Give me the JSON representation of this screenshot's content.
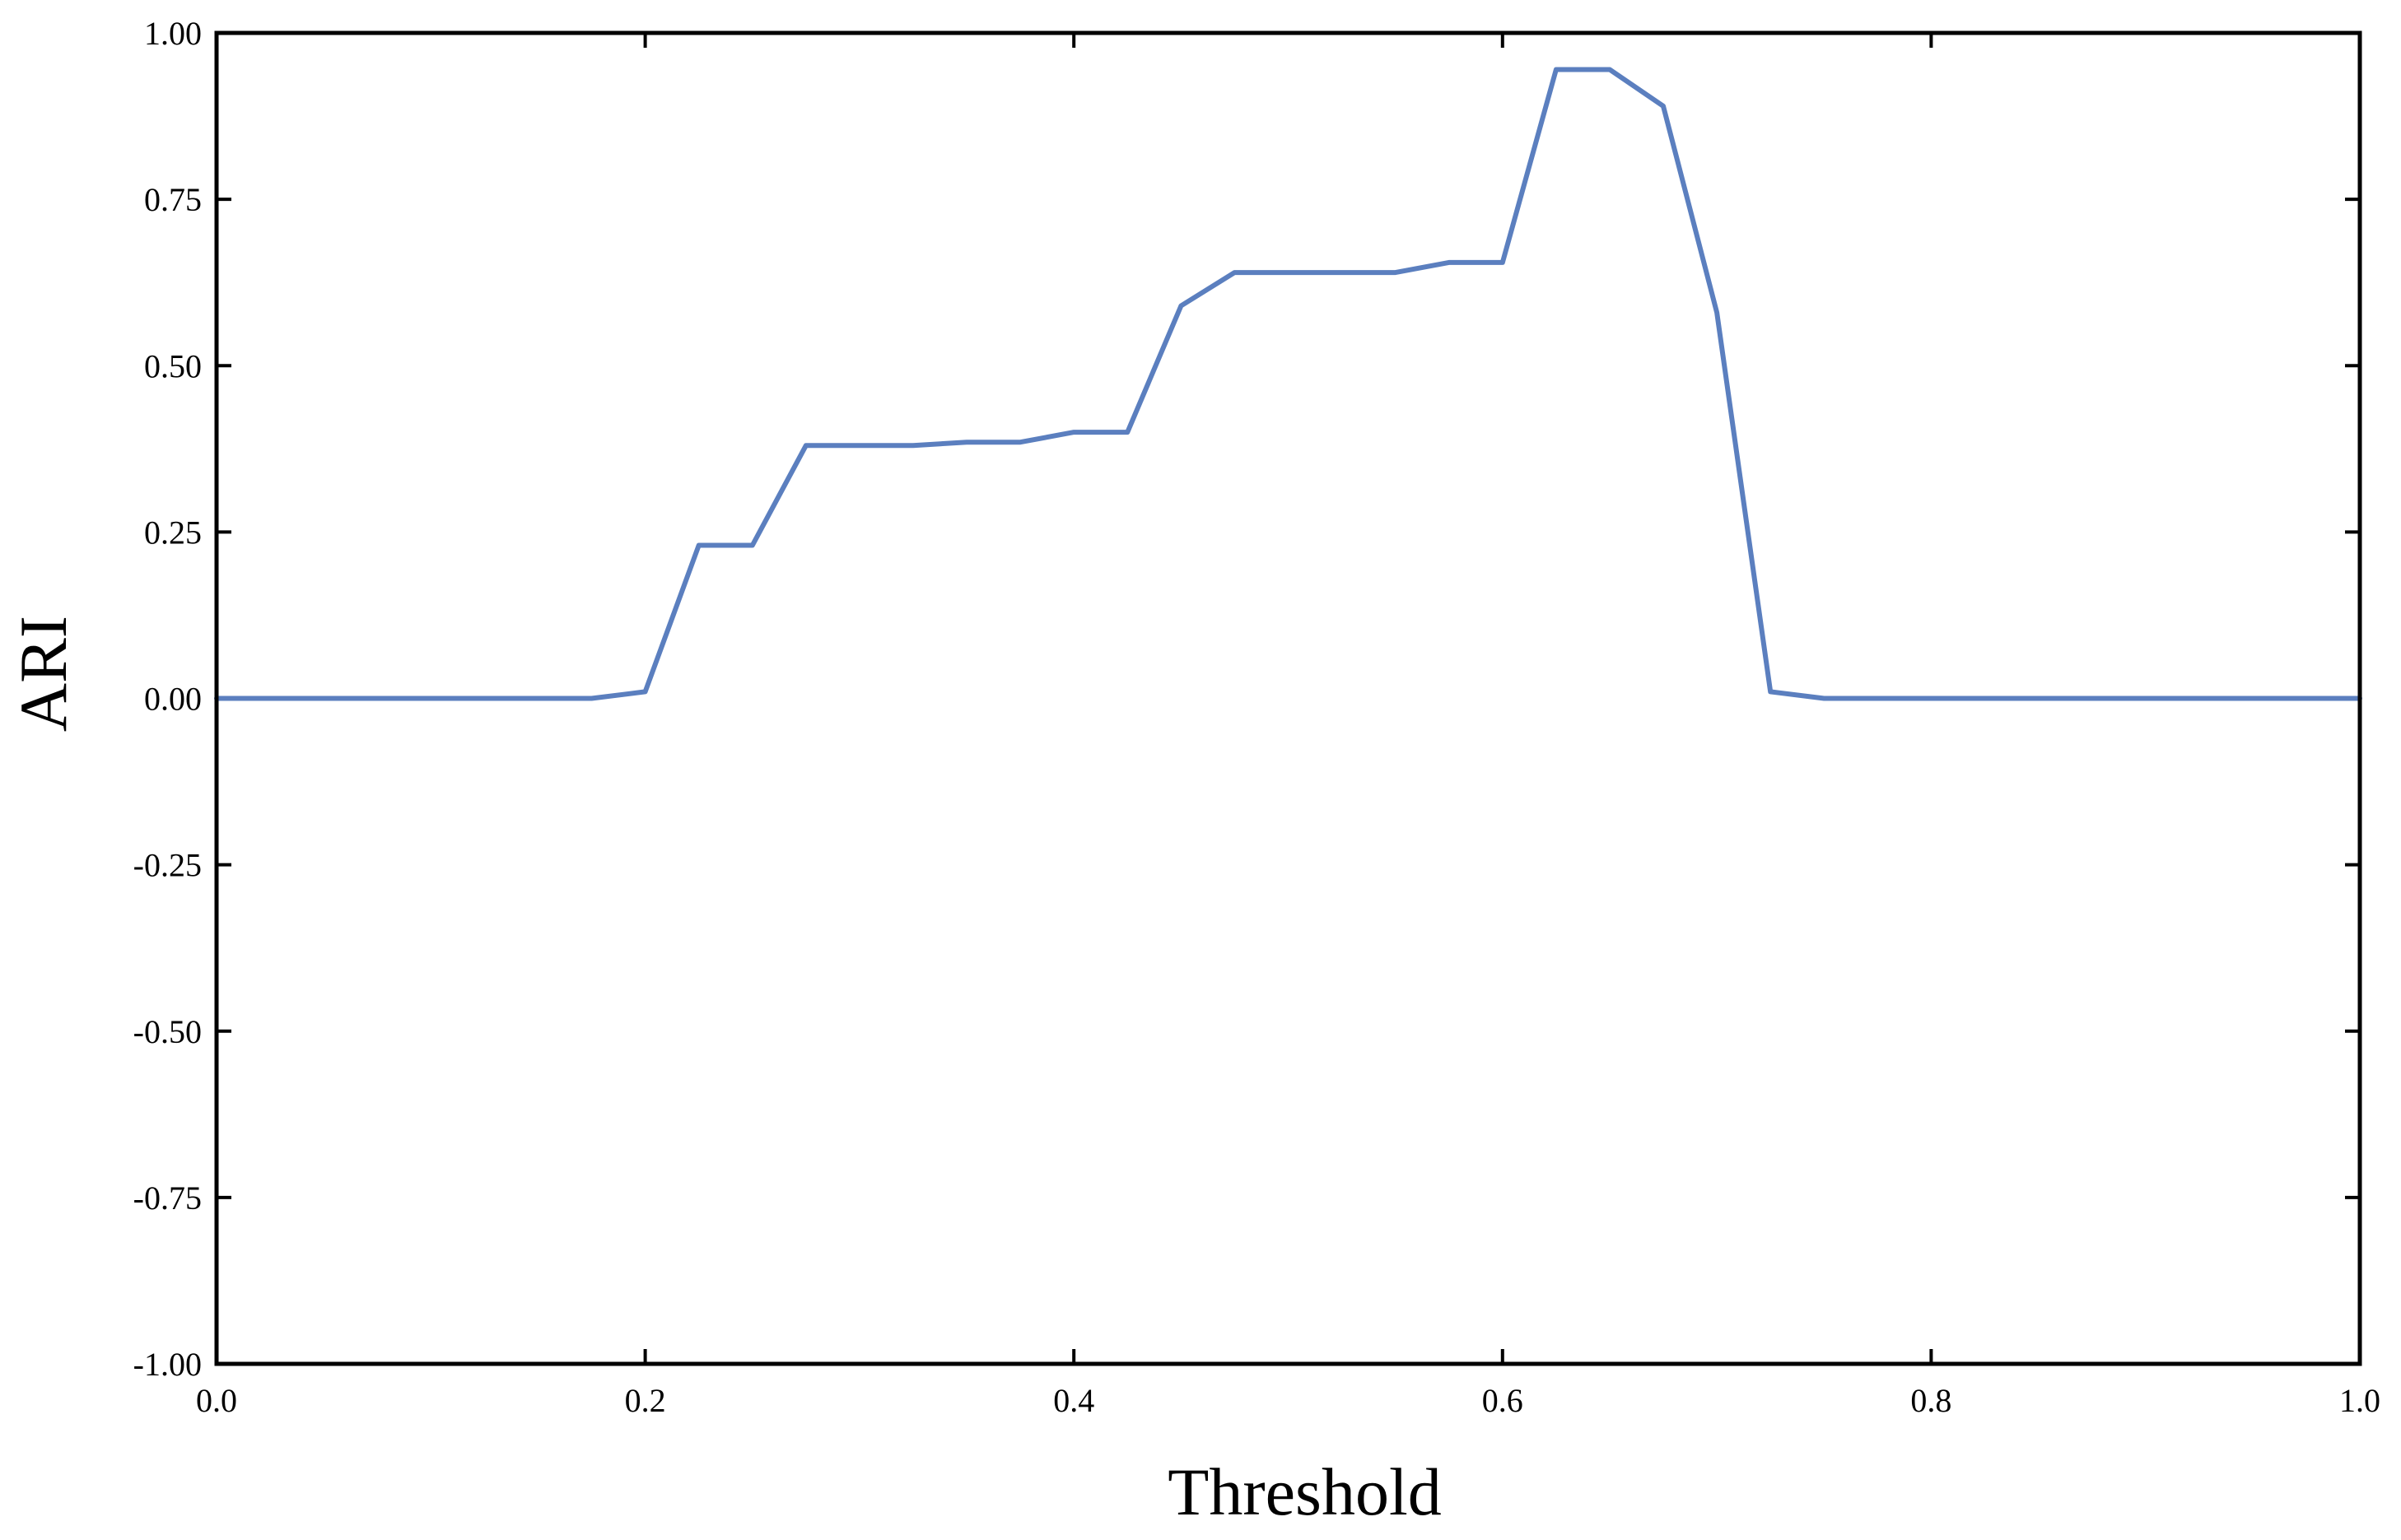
{
  "chart_data": {
    "type": "line",
    "xlabel": "Threshold",
    "ylabel": "ARI",
    "xlim": [
      0.0,
      1.0
    ],
    "ylim": [
      -1.0,
      1.0
    ],
    "x_ticks": [
      "0.0",
      "0.2",
      "0.4",
      "0.6",
      "0.8",
      "1.0"
    ],
    "y_ticks": [
      "1.00",
      "0.75",
      "0.50",
      "0.25",
      "0.00",
      "-0.25",
      "-0.50",
      "-0.75",
      "-1.00"
    ],
    "grid": false,
    "legend": "none",
    "line_color": "#5b7fbf",
    "series": [
      {
        "x": [
          0.0,
          0.025,
          0.05,
          0.075,
          0.1,
          0.125,
          0.15,
          0.175,
          0.2,
          0.225,
          0.25,
          0.275,
          0.3,
          0.325,
          0.35,
          0.375,
          0.4,
          0.425,
          0.45,
          0.475,
          0.5,
          0.525,
          0.55,
          0.575,
          0.6,
          0.625,
          0.65,
          0.675,
          0.7,
          0.725,
          0.75,
          0.775,
          0.8,
          0.825,
          0.85,
          0.875,
          0.9,
          0.925,
          0.95,
          0.975,
          1.0
        ],
        "values": [
          0.0,
          0.0,
          0.0,
          0.0,
          0.0,
          0.0,
          0.0,
          0.0,
          0.01,
          0.23,
          0.23,
          0.38,
          0.38,
          0.38,
          0.385,
          0.385,
          0.4,
          0.4,
          0.59,
          0.64,
          0.64,
          0.64,
          0.64,
          0.655,
          0.655,
          0.945,
          0.945,
          0.89,
          0.58,
          0.01,
          0.0,
          0.0,
          0.0,
          0.0,
          0.0,
          0.0,
          0.0,
          0.0,
          0.0,
          0.0,
          0.0
        ]
      }
    ]
  }
}
